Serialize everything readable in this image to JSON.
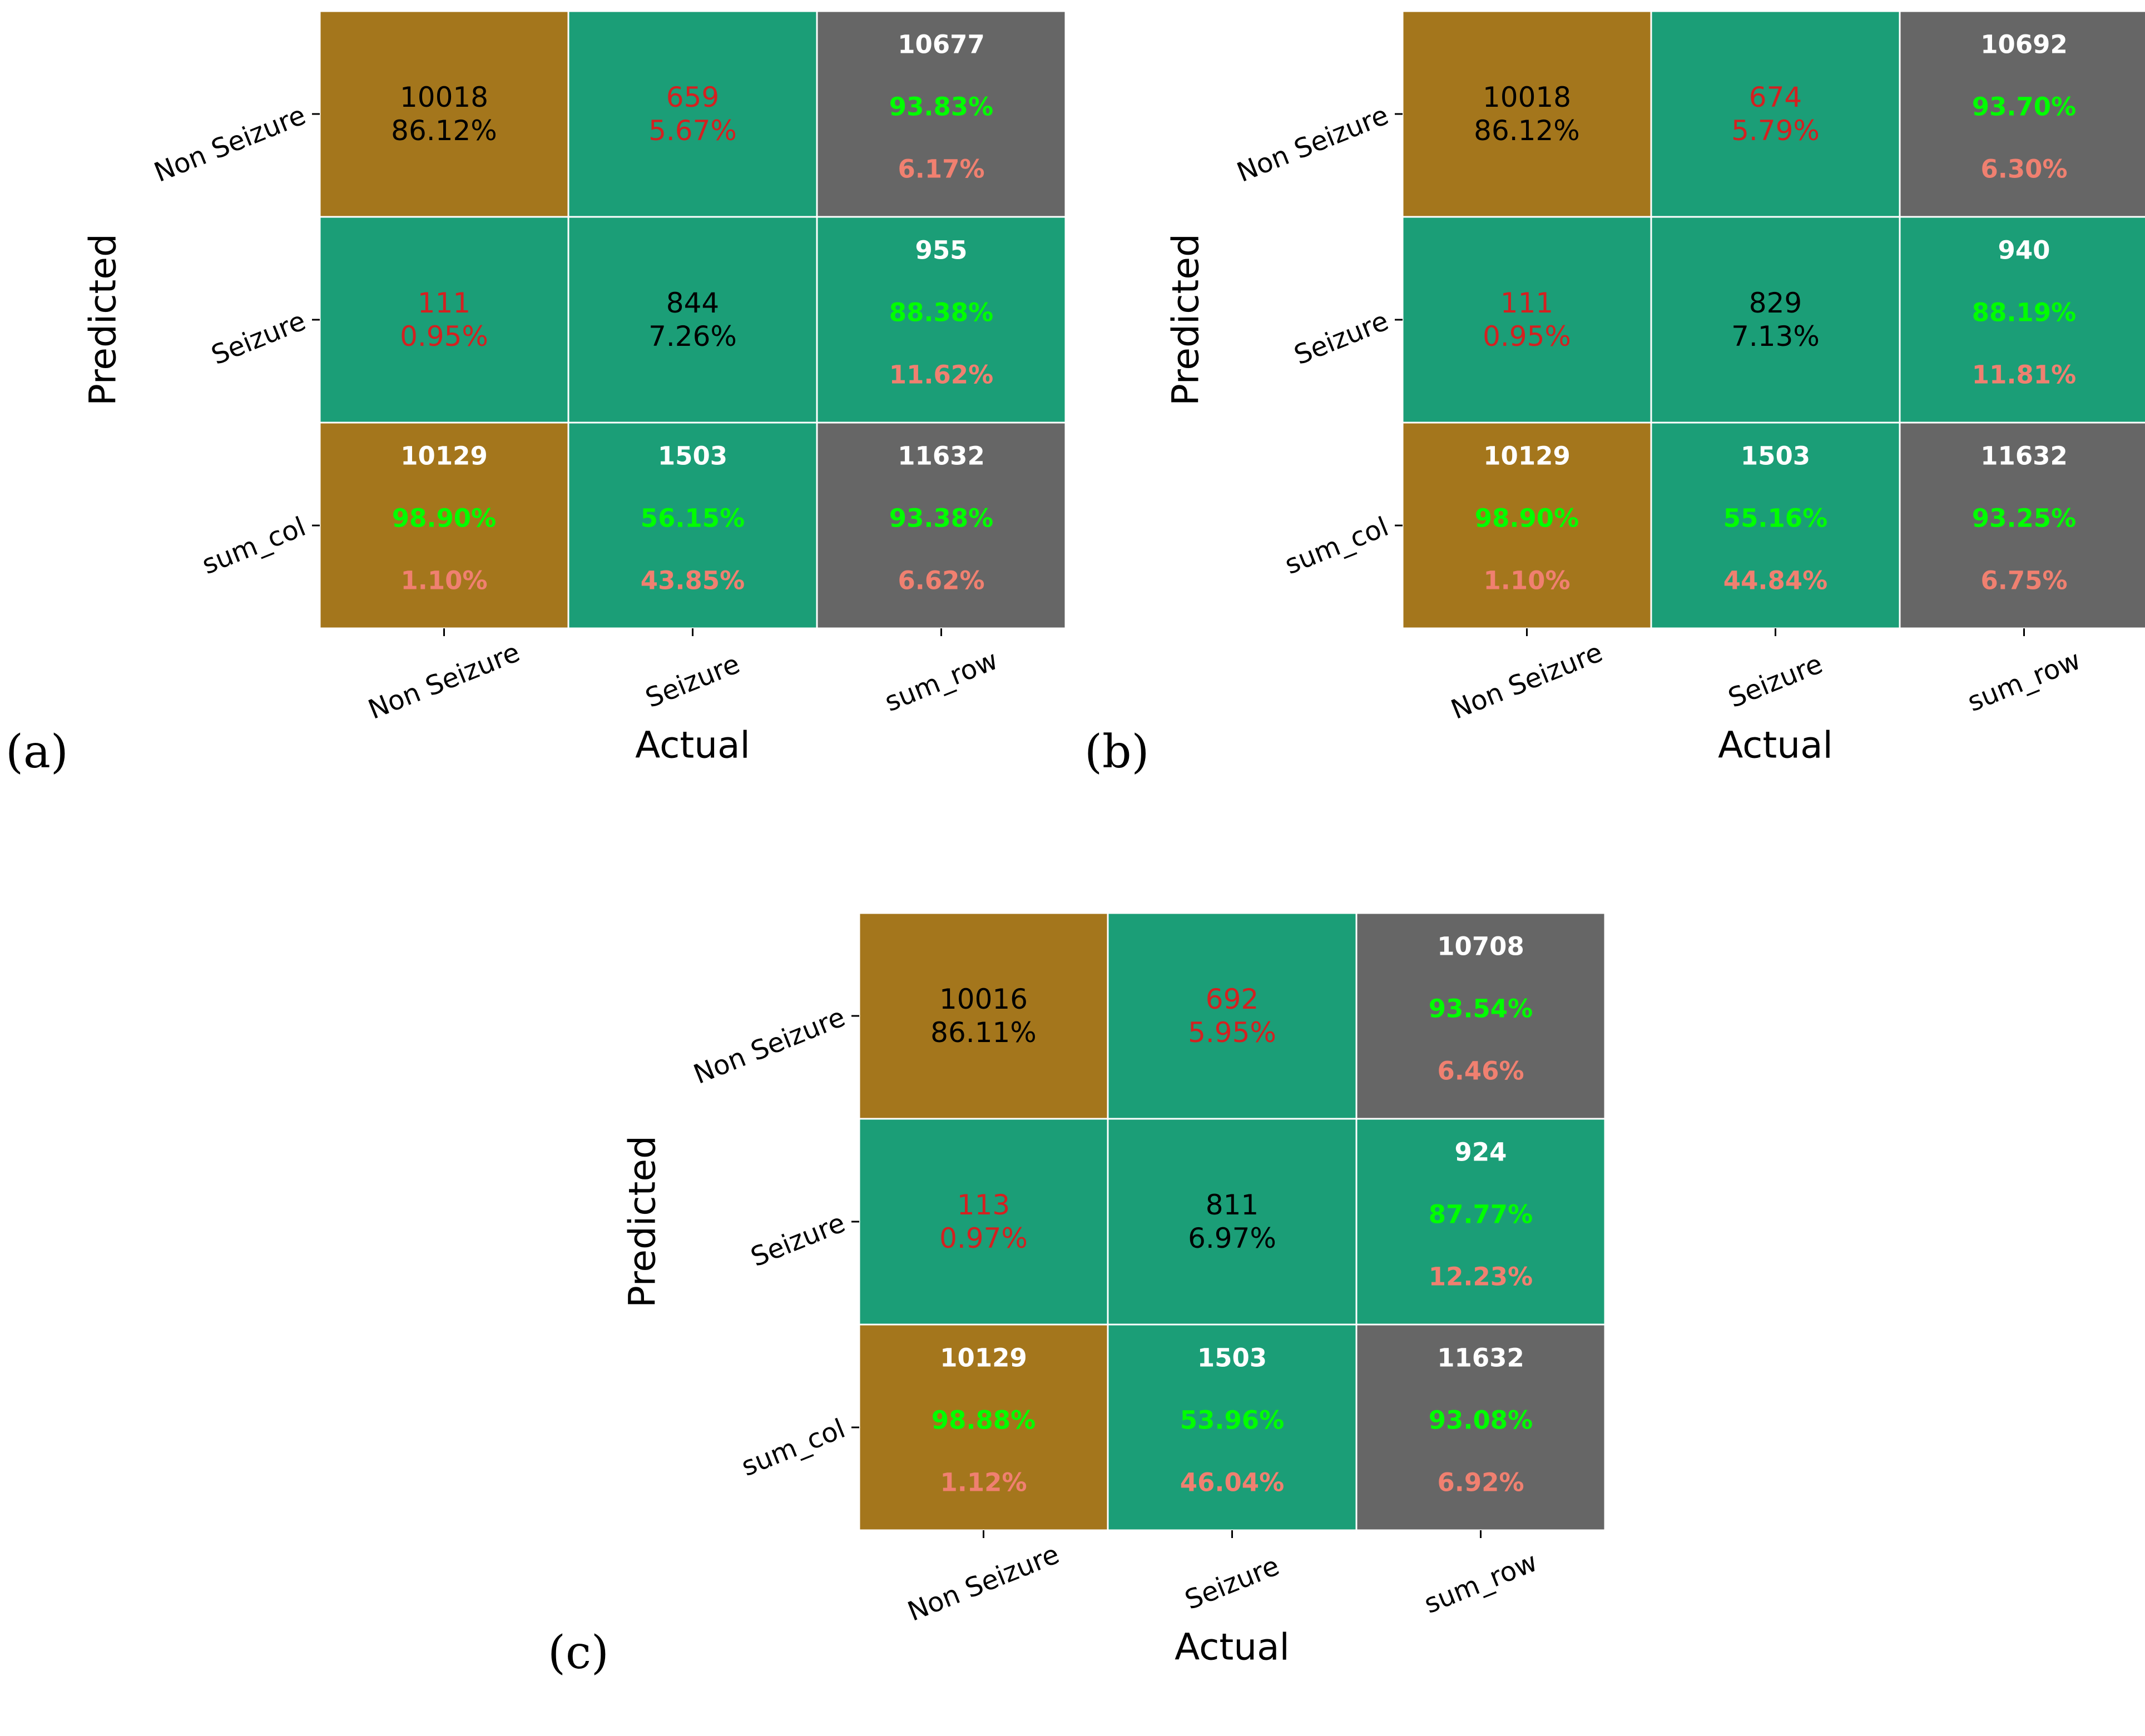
{
  "figure": {
    "palette": {
      "diag": "#A4761C",
      "off": "#1B9E77",
      "total": "#666666",
      "red": "#D42020",
      "green": "#00FF00",
      "salmon": "#F08070",
      "white": "#FFFFFF",
      "black": "#000000"
    }
  },
  "chart_data": [
    {
      "type": "heatmap",
      "panel_label": "(a)",
      "xlabel": "Actual",
      "ylabel": "Predicted",
      "x_ticks": [
        "Non Seizure",
        "Seizure",
        "sum_row"
      ],
      "y_ticks": [
        "Non Seizure",
        "Seizure",
        "sum_col"
      ],
      "cells": [
        [
          {
            "kind": "diag",
            "lines": [
              "10018",
              "86.12%"
            ]
          },
          {
            "kind": "off",
            "lines": [
              "659",
              "5.67%"
            ]
          },
          {
            "kind": "total",
            "lines": [
              "10677",
              "93.83%",
              "6.17%"
            ]
          }
        ],
        [
          {
            "kind": "off",
            "lines": [
              "111",
              "0.95%"
            ]
          },
          {
            "kind": "diag_off_bg",
            "lines": [
              "844",
              "7.26%"
            ]
          },
          {
            "kind": "total_off_bg",
            "lines": [
              "955",
              "88.38%",
              "11.62%"
            ]
          }
        ],
        [
          {
            "kind": "total_diag_bg",
            "lines": [
              "10129",
              "98.90%",
              "1.10%"
            ]
          },
          {
            "kind": "total_off_bg",
            "lines": [
              "1503",
              "56.15%",
              "43.85%"
            ]
          },
          {
            "kind": "total",
            "lines": [
              "11632",
              "93.38%",
              "6.62%"
            ]
          }
        ]
      ]
    },
    {
      "type": "heatmap",
      "panel_label": "(b)",
      "xlabel": "Actual",
      "ylabel": "Predicted",
      "x_ticks": [
        "Non Seizure",
        "Seizure",
        "sum_row"
      ],
      "y_ticks": [
        "Non Seizure",
        "Seizure",
        "sum_col"
      ],
      "cells": [
        [
          {
            "kind": "diag",
            "lines": [
              "10018",
              "86.12%"
            ]
          },
          {
            "kind": "off",
            "lines": [
              "674",
              "5.79%"
            ]
          },
          {
            "kind": "total",
            "lines": [
              "10692",
              "93.70%",
              "6.30%"
            ]
          }
        ],
        [
          {
            "kind": "off",
            "lines": [
              "111",
              "0.95%"
            ]
          },
          {
            "kind": "diag_off_bg",
            "lines": [
              "829",
              "7.13%"
            ]
          },
          {
            "kind": "total_off_bg",
            "lines": [
              "940",
              "88.19%",
              "11.81%"
            ]
          }
        ],
        [
          {
            "kind": "total_diag_bg",
            "lines": [
              "10129",
              "98.90%",
              "1.10%"
            ]
          },
          {
            "kind": "total_off_bg",
            "lines": [
              "1503",
              "55.16%",
              "44.84%"
            ]
          },
          {
            "kind": "total",
            "lines": [
              "11632",
              "93.25%",
              "6.75%"
            ]
          }
        ]
      ]
    },
    {
      "type": "heatmap",
      "panel_label": "(c)",
      "xlabel": "Actual",
      "ylabel": "Predicted",
      "x_ticks": [
        "Non Seizure",
        "Seizure",
        "sum_row"
      ],
      "y_ticks": [
        "Non Seizure",
        "Seizure",
        "sum_col"
      ],
      "cells": [
        [
          {
            "kind": "diag",
            "lines": [
              "10016",
              "86.11%"
            ]
          },
          {
            "kind": "off",
            "lines": [
              "692",
              "5.95%"
            ]
          },
          {
            "kind": "total",
            "lines": [
              "10708",
              "93.54%",
              "6.46%"
            ]
          }
        ],
        [
          {
            "kind": "off",
            "lines": [
              "113",
              "0.97%"
            ]
          },
          {
            "kind": "diag_off_bg",
            "lines": [
              "811",
              "6.97%"
            ]
          },
          {
            "kind": "total_off_bg",
            "lines": [
              "924",
              "87.77%",
              "12.23%"
            ]
          }
        ],
        [
          {
            "kind": "total_diag_bg",
            "lines": [
              "10129",
              "98.88%",
              "1.12%"
            ]
          },
          {
            "kind": "total_off_bg",
            "lines": [
              "1503",
              "53.96%",
              "46.04%"
            ]
          },
          {
            "kind": "total",
            "lines": [
              "11632",
              "93.08%",
              "6.92%"
            ]
          }
        ]
      ]
    }
  ]
}
